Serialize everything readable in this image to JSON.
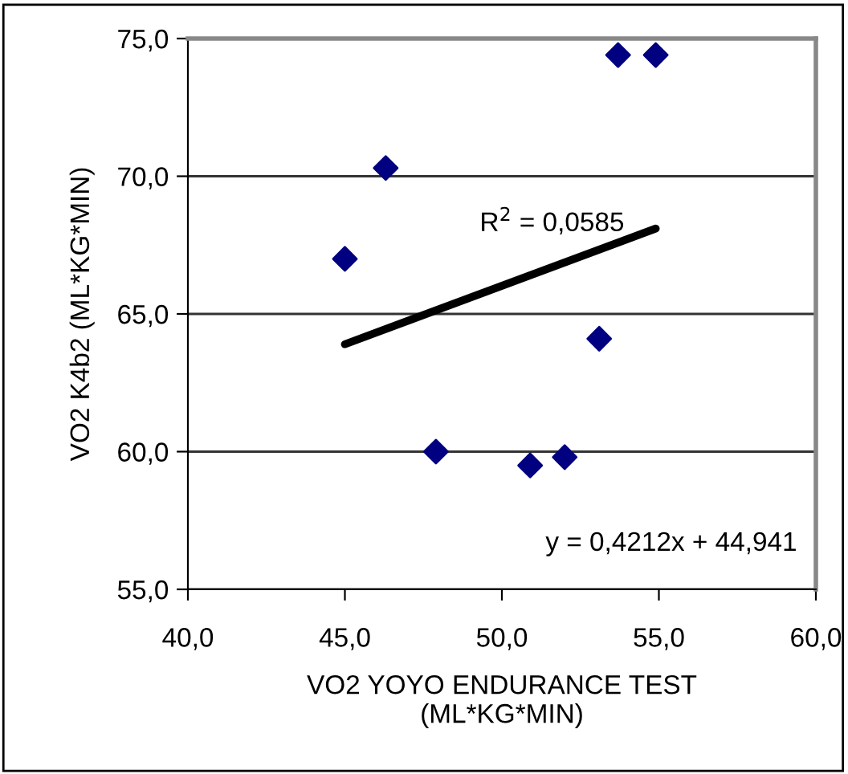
{
  "chart_data": {
    "type": "scatter",
    "xlabel": "VO2 YOYO ENDURANCE TEST\n(ML*KG*MIN)",
    "ylabel": "VO2 K4b2 (ML*KG*MIN)",
    "xlim": [
      40,
      60
    ],
    "ylim": [
      55,
      75
    ],
    "xticks": [
      {
        "value": 40,
        "label": "40,0"
      },
      {
        "value": 45,
        "label": "45,0"
      },
      {
        "value": 50,
        "label": "50,0"
      },
      {
        "value": 55,
        "label": "55,0"
      },
      {
        "value": 60,
        "label": "60,0"
      }
    ],
    "yticks": [
      {
        "value": 55,
        "label": "55,0"
      },
      {
        "value": 60,
        "label": "60,0"
      },
      {
        "value": 65,
        "label": "65,0"
      },
      {
        "value": 70,
        "label": "70,0"
      },
      {
        "value": 75,
        "label": "75,0"
      }
    ],
    "grid": "y",
    "legend": false,
    "series": [
      {
        "marker": "diamond",
        "color": "#000080",
        "x": [
          53.7,
          54.9,
          46.3,
          45.0,
          53.1,
          47.9,
          50.9,
          52.0
        ],
        "values": [
          74.4,
          74.4,
          70.3,
          67.0,
          64.1,
          60.0,
          59.5,
          59.8
        ]
      },
      {
        "type": "line",
        "color": "#000000",
        "x": [
          45.0,
          54.9
        ],
        "values": [
          63.9,
          68.1
        ]
      }
    ],
    "annotations": [
      "R$^{2}$ = 0,0585",
      "y = 0,4212x + 44,941"
    ]
  }
}
